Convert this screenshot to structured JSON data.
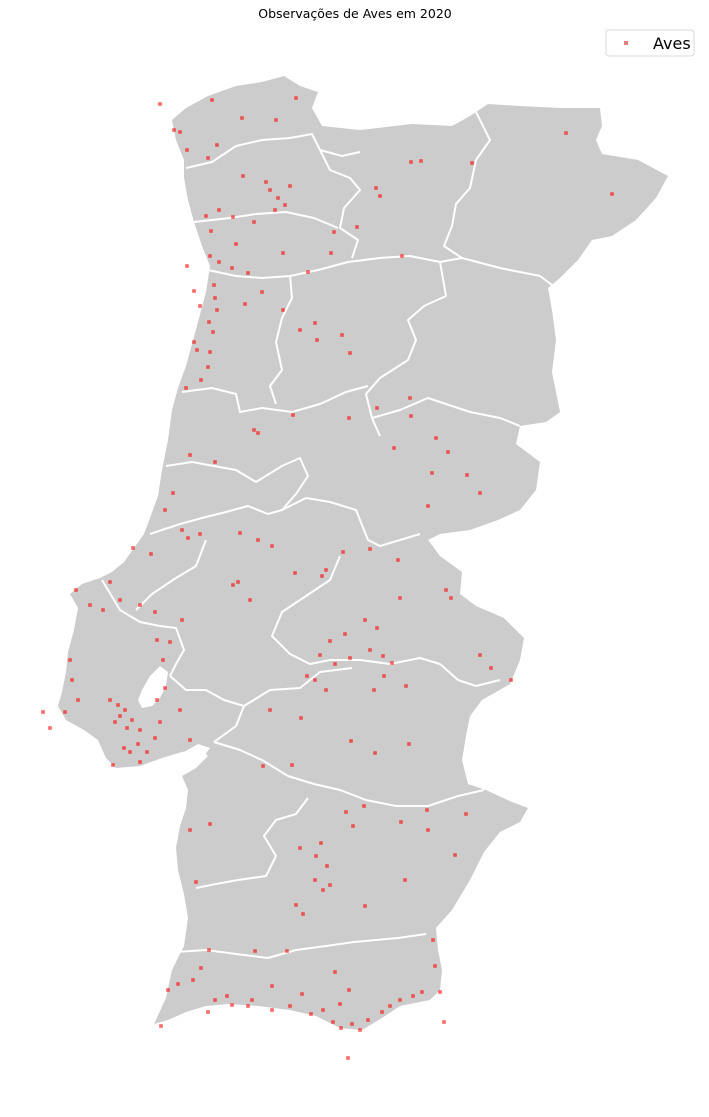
{
  "title": "Observações de Aves em 2020",
  "legend": {
    "label": "Aves",
    "placement": "upper-right"
  },
  "style": {
    "land_color": "#cccccc",
    "border_color": "#ffffff",
    "marker_color": "#ff0000",
    "background": "#ffffff"
  },
  "chart_data": {
    "type": "scatter",
    "series": [
      {
        "name": "Aves",
        "marker": "square",
        "color": "#ff0000",
        "points_xy": [
          [
            160,
            104
          ],
          [
            212,
            100
          ],
          [
            242,
            118
          ],
          [
            276,
            120
          ],
          [
            296,
            98
          ],
          [
            180,
            132
          ],
          [
            174,
            130
          ],
          [
            217,
            145
          ],
          [
            187,
            150
          ],
          [
            208,
            158
          ],
          [
            243,
            176
          ],
          [
            266,
            182
          ],
          [
            270,
            190
          ],
          [
            278,
            198
          ],
          [
            285,
            205
          ],
          [
            290,
            186
          ],
          [
            275,
            210
          ],
          [
            254,
            222
          ],
          [
            233,
            217
          ],
          [
            219,
            210
          ],
          [
            206,
            216
          ],
          [
            211,
            231
          ],
          [
            210,
            256
          ],
          [
            219,
            262
          ],
          [
            232,
            268
          ],
          [
            248,
            273
          ],
          [
            236,
            244
          ],
          [
            283,
            253
          ],
          [
            308,
            272
          ],
          [
            331,
            253
          ],
          [
            334,
            232
          ],
          [
            357,
            227
          ],
          [
            376,
            188
          ],
          [
            380,
            196
          ],
          [
            411,
            162
          ],
          [
            421,
            161
          ],
          [
            472,
            163
          ],
          [
            566,
            133
          ],
          [
            612,
            194
          ],
          [
            402,
            256
          ],
          [
            214,
            285
          ],
          [
            215,
            298
          ],
          [
            217,
            310
          ],
          [
            209,
            322
          ],
          [
            213,
            332
          ],
          [
            210,
            352
          ],
          [
            194,
            342
          ],
          [
            208,
            367
          ],
          [
            245,
            304
          ],
          [
            262,
            292
          ],
          [
            283,
            310
          ],
          [
            300,
            330
          ],
          [
            317,
            340
          ],
          [
            315,
            323
          ],
          [
            342,
            335
          ],
          [
            350,
            353
          ],
          [
            377,
            408
          ],
          [
            410,
            398
          ],
          [
            411,
            416
          ],
          [
            394,
            448
          ],
          [
            436,
            438
          ],
          [
            448,
            452
          ],
          [
            432,
            473
          ],
          [
            467,
            475
          ],
          [
            480,
            493
          ],
          [
            428,
            506
          ],
          [
            349,
            418
          ],
          [
            293,
            415
          ],
          [
            258,
            433
          ],
          [
            254,
            430
          ],
          [
            190,
            455
          ],
          [
            215,
            462
          ],
          [
            173,
            493
          ],
          [
            165,
            510
          ],
          [
            182,
            530
          ],
          [
            188,
            538
          ],
          [
            200,
            534
          ],
          [
            151,
            554
          ],
          [
            133,
            548
          ],
          [
            240,
            533
          ],
          [
            258,
            540
          ],
          [
            272,
            546
          ],
          [
            238,
            582
          ],
          [
            233,
            585
          ],
          [
            250,
            600
          ],
          [
            295,
            573
          ],
          [
            322,
            576
          ],
          [
            326,
            570
          ],
          [
            343,
            552
          ],
          [
            370,
            549
          ],
          [
            398,
            560
          ],
          [
            400,
            598
          ],
          [
            446,
            590
          ],
          [
            451,
            598
          ],
          [
            365,
            620
          ],
          [
            377,
            628
          ],
          [
            345,
            634
          ],
          [
            330,
            641
          ],
          [
            320,
            655
          ],
          [
            335,
            664
          ],
          [
            350,
            658
          ],
          [
            370,
            650
          ],
          [
            383,
            656
          ],
          [
            392,
            663
          ],
          [
            307,
            676
          ],
          [
            315,
            680
          ],
          [
            326,
            690
          ],
          [
            406,
            686
          ],
          [
            384,
            676
          ],
          [
            374,
            690
          ],
          [
            480,
            655
          ],
          [
            491,
            668
          ],
          [
            511,
            680
          ],
          [
            76,
            590
          ],
          [
            90,
            605
          ],
          [
            103,
            610
          ],
          [
            110,
            582
          ],
          [
            120,
            600
          ],
          [
            140,
            605
          ],
          [
            155,
            612
          ],
          [
            157,
            640
          ],
          [
            163,
            660
          ],
          [
            170,
            642
          ],
          [
            182,
            620
          ],
          [
            70,
            660
          ],
          [
            72,
            680
          ],
          [
            78,
            700
          ],
          [
            65,
            712
          ],
          [
            43,
            712
          ],
          [
            50,
            728
          ],
          [
            110,
            700
          ],
          [
            118,
            705
          ],
          [
            125,
            710
          ],
          [
            120,
            716
          ],
          [
            115,
            722
          ],
          [
            127,
            728
          ],
          [
            132,
            720
          ],
          [
            140,
            730
          ],
          [
            138,
            744
          ],
          [
            147,
            752
          ],
          [
            155,
            738
          ],
          [
            160,
            722
          ],
          [
            157,
            700
          ],
          [
            165,
            688
          ],
          [
            180,
            710
          ],
          [
            190,
            740
          ],
          [
            124,
            748
          ],
          [
            130,
            752
          ],
          [
            140,
            762
          ],
          [
            113,
            765
          ],
          [
            270,
            710
          ],
          [
            301,
            718
          ],
          [
            351,
            741
          ],
          [
            375,
            753
          ],
          [
            409,
            744
          ],
          [
            292,
            765
          ],
          [
            263,
            766
          ],
          [
            190,
            830
          ],
          [
            210,
            824
          ],
          [
            196,
            882
          ],
          [
            346,
            812
          ],
          [
            353,
            826
          ],
          [
            364,
            806
          ],
          [
            401,
            822
          ],
          [
            427,
            810
          ],
          [
            428,
            830
          ],
          [
            466,
            814
          ],
          [
            321,
            843
          ],
          [
            316,
            856
          ],
          [
            327,
            866
          ],
          [
            300,
            848
          ],
          [
            315,
            880
          ],
          [
            323,
            890
          ],
          [
            330,
            885
          ],
          [
            303,
            914
          ],
          [
            296,
            905
          ],
          [
            365,
            906
          ],
          [
            405,
            880
          ],
          [
            455,
            855
          ],
          [
            433,
            940
          ],
          [
            435,
            966
          ],
          [
            201,
            968
          ],
          [
            215,
            1000
          ],
          [
            208,
            1012
          ],
          [
            248,
            1006
          ],
          [
            272,
            1010
          ],
          [
            290,
            1006
          ],
          [
            311,
            1014
          ],
          [
            323,
            1010
          ],
          [
            333,
            1022
          ],
          [
            341,
            1028
          ],
          [
            352,
            1024
          ],
          [
            360,
            1030
          ],
          [
            368,
            1020
          ],
          [
            382,
            1012
          ],
          [
            390,
            1006
          ],
          [
            400,
            1000
          ],
          [
            413,
            996
          ],
          [
            422,
            992
          ],
          [
            440,
            992
          ],
          [
            349,
            990
          ],
          [
            340,
            1004
          ],
          [
            302,
            994
          ],
          [
            272,
            986
          ],
          [
            252,
            1000
          ],
          [
            227,
            996
          ],
          [
            232,
            1005
          ],
          [
            161,
            1026
          ],
          [
            168,
            990
          ],
          [
            178,
            984
          ],
          [
            193,
            980
          ],
          [
            209,
            950
          ],
          [
            255,
            951
          ],
          [
            287,
            951
          ],
          [
            335,
            972
          ],
          [
            348,
            1058
          ],
          [
            444,
            1022
          ],
          [
            187,
            266
          ],
          [
            194,
            291
          ],
          [
            200,
            306
          ],
          [
            197,
            350
          ],
          [
            186,
            388
          ],
          [
            201,
            380
          ]
        ]
      }
    ]
  }
}
